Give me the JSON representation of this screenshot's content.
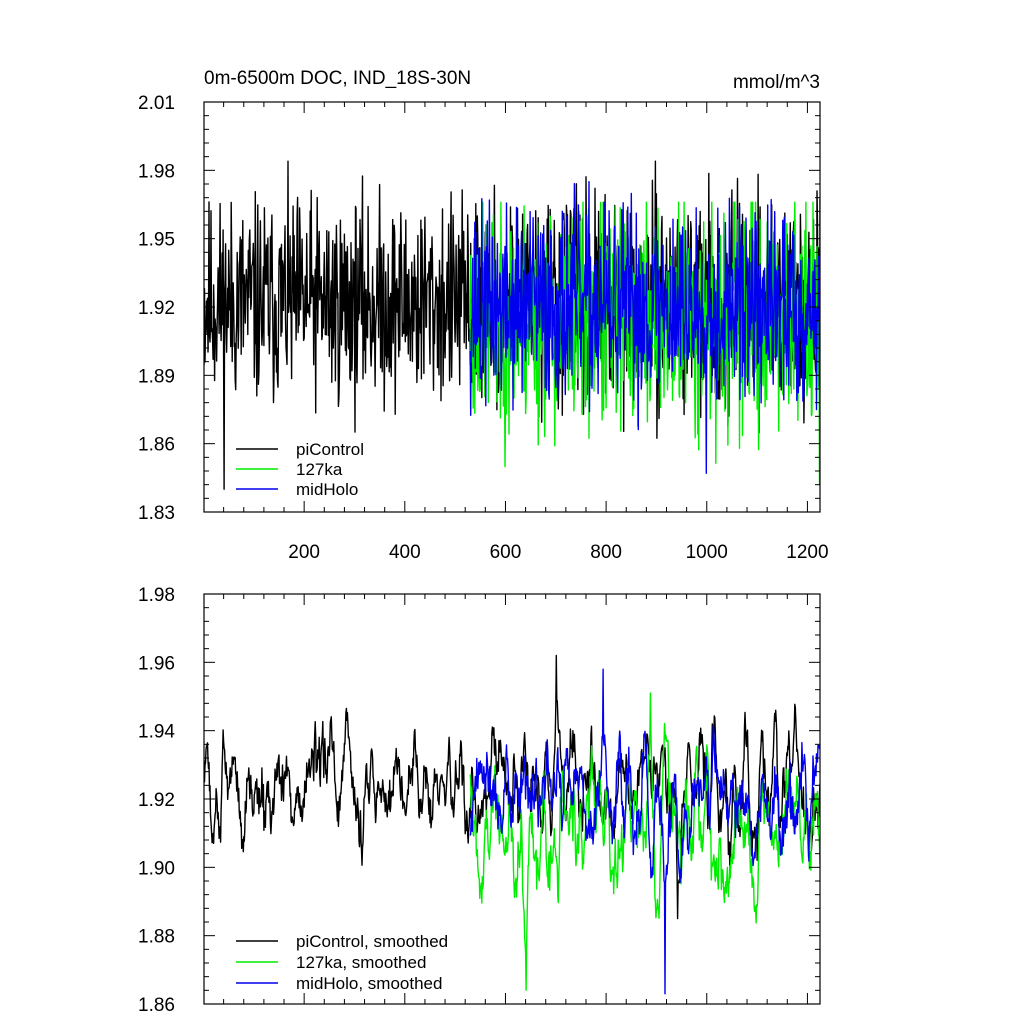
{
  "chart_data": [
    {
      "type": "line",
      "title": "0m-6500m DOC, IND_18S-30N",
      "units": "mmol/m^3",
      "xlim": [
        1,
        1225
      ],
      "ylim": [
        1.83,
        2.01
      ],
      "x_ticks": [
        200,
        400,
        600,
        800,
        1000,
        1200
      ],
      "x_tick_labels": [
        "200",
        "400",
        "600",
        "800",
        "1000",
        "1200"
      ],
      "y_ticks": [
        1.83,
        1.86,
        1.89,
        1.92,
        1.95,
        1.98,
        2.01
      ],
      "y_tick_labels": [
        "1.83",
        "1.86",
        "1.89",
        "1.92",
        "1.95",
        "1.98",
        "2.01"
      ],
      "legend_position": "bottom-left",
      "series": [
        {
          "name": "piControl",
          "color": "#000000",
          "x_start": 1,
          "x_end": 1225,
          "mean": 1.922,
          "amplitude": 0.022,
          "min": 1.84,
          "max": 1.984,
          "seed": 11
        },
        {
          "name": "127ka",
          "color": "#00ee00",
          "x_start": 530,
          "x_end": 1225,
          "mean": 1.915,
          "amplitude": 0.025,
          "min": 1.842,
          "max": 1.966,
          "seed": 23
        },
        {
          "name": "midHolo",
          "color": "#0000ee",
          "x_start": 530,
          "x_end": 1225,
          "mean": 1.92,
          "amplitude": 0.021,
          "min": 1.847,
          "max": 1.975,
          "seed": 37
        }
      ]
    },
    {
      "type": "line",
      "title": "",
      "xlim": [
        1,
        1225
      ],
      "ylim": [
        1.86,
        1.98
      ],
      "x_ticks": [
        200,
        400,
        600,
        800,
        1000,
        1200
      ],
      "x_tick_labels": [],
      "y_ticks": [
        1.86,
        1.88,
        1.9,
        1.92,
        1.94,
        1.96,
        1.98
      ],
      "y_tick_labels": [
        "1.86",
        "1.88",
        "1.90",
        "1.92",
        "1.94",
        "1.96",
        "1.98"
      ],
      "legend_position": "bottom-left",
      "series": [
        {
          "name": "piControl, smoothed",
          "color": "#000000",
          "x_start": 1,
          "x_end": 1225,
          "mean": 1.923,
          "amplitude": 0.013,
          "min": 1.885,
          "max": 1.962,
          "seed": 51
        },
        {
          "name": "127ka, smoothed",
          "color": "#00ee00",
          "x_start": 530,
          "x_end": 1225,
          "mean": 1.914,
          "amplitude": 0.016,
          "min": 1.864,
          "max": 1.951,
          "seed": 63
        },
        {
          "name": "midHolo, smoothed",
          "color": "#0000ee",
          "x_start": 530,
          "x_end": 1225,
          "mean": 1.918,
          "amplitude": 0.014,
          "min": 1.863,
          "max": 1.958,
          "seed": 77
        }
      ]
    }
  ]
}
